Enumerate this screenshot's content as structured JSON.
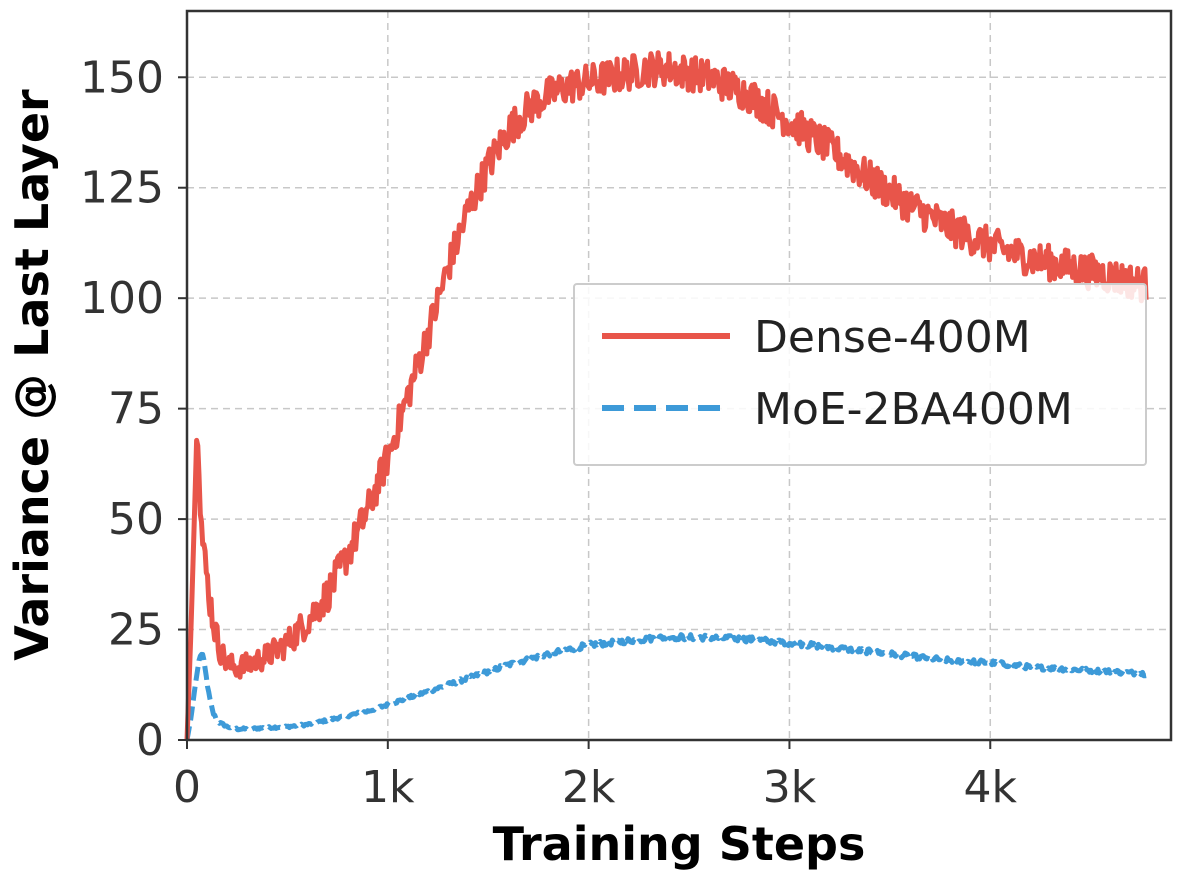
{
  "chart_data": {
    "type": "line",
    "title": "",
    "xlabel": "Training Steps",
    "ylabel": "Variance @ Last Layer",
    "xlim": [
      0,
      4900
    ],
    "ylim": [
      0,
      165
    ],
    "grid": true,
    "legend_position": "center-right",
    "x_ticks": [
      {
        "value": 0,
        "label": "0"
      },
      {
        "value": 1000,
        "label": "1k"
      },
      {
        "value": 2000,
        "label": "2k"
      },
      {
        "value": 3000,
        "label": "3k"
      },
      {
        "value": 4000,
        "label": "4k"
      }
    ],
    "y_ticks": [
      {
        "value": 0,
        "label": "0"
      },
      {
        "value": 25,
        "label": "25"
      },
      {
        "value": 50,
        "label": "50"
      },
      {
        "value": 75,
        "label": "75"
      },
      {
        "value": 100,
        "label": "100"
      },
      {
        "value": 125,
        "label": "125"
      },
      {
        "value": 150,
        "label": "150"
      }
    ],
    "series": [
      {
        "name": "Dense-400M",
        "color": "#e8554a",
        "style": "solid",
        "noise": 4,
        "x": [
          0,
          20,
          40,
          50,
          60,
          75,
          90,
          110,
          130,
          160,
          200,
          250,
          300,
          400,
          500,
          600,
          700,
          800,
          900,
          1000,
          1100,
          1200,
          1300,
          1400,
          1500,
          1600,
          1700,
          1800,
          1900,
          2000,
          2100,
          2200,
          2300,
          2400,
          2500,
          2600,
          2700,
          2800,
          2900,
          3000,
          3200,
          3400,
          3600,
          3800,
          4000,
          4200,
          4400,
          4600,
          4780
        ],
        "y": [
          0,
          25,
          55,
          71,
          60,
          46,
          40,
          33,
          27,
          21,
          17,
          16.5,
          17,
          19,
          22,
          27,
          33,
          42,
          52,
          64,
          78,
          92,
          107,
          120,
          130,
          138,
          143,
          146,
          148,
          149,
          150,
          151,
          152,
          152,
          151,
          150,
          148,
          146,
          143,
          140,
          134,
          127,
          121,
          116,
          112,
          109,
          107,
          105,
          103
        ]
      },
      {
        "name": "MoE-2BA400M",
        "color": "#3d9ad8",
        "style": "dashed",
        "noise": 0.8,
        "x": [
          0,
          20,
          40,
          60,
          75,
          90,
          110,
          130,
          160,
          200,
          250,
          300,
          400,
          500,
          600,
          700,
          800,
          900,
          1000,
          1200,
          1400,
          1600,
          1800,
          2000,
          2200,
          2400,
          2600,
          2800,
          3000,
          3200,
          3400,
          3600,
          3800,
          4000,
          4200,
          4400,
          4600,
          4780
        ],
        "y": [
          0,
          5,
          12,
          18,
          20,
          16,
          10,
          6,
          4,
          3,
          2.5,
          2.5,
          2.8,
          3,
          3.5,
          4.5,
          5.5,
          6.5,
          8,
          11,
          14,
          17,
          19.5,
          21.5,
          22.5,
          23.3,
          23.2,
          22.8,
          22,
          21,
          20,
          19,
          18,
          17.5,
          16.5,
          16,
          15.5,
          15
        ]
      }
    ]
  }
}
